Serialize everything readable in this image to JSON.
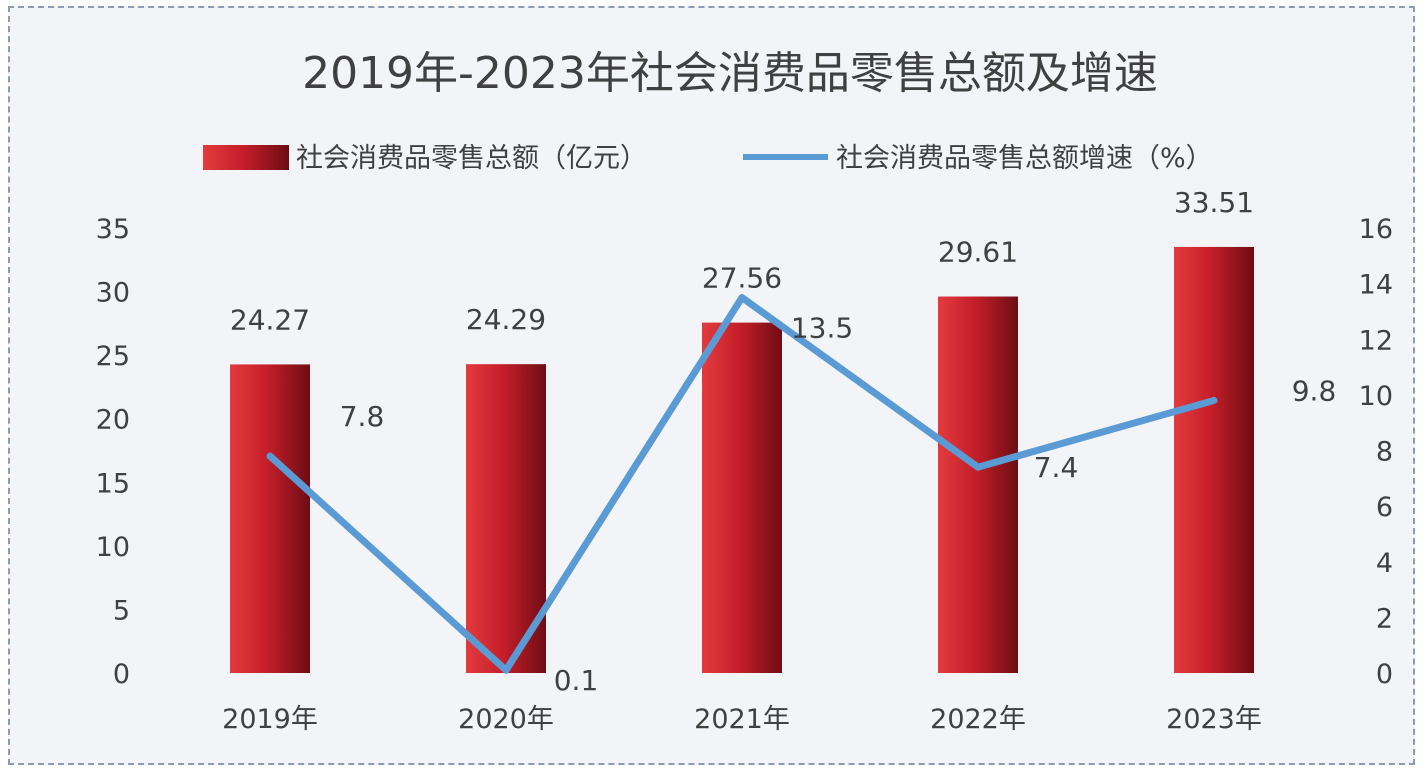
{
  "chart_data": {
    "type": "bar",
    "title": "2019年-2023年社会消费品零售总额及增速",
    "categories": [
      "2019年",
      "2020年",
      "2021年",
      "2022年",
      "2023年"
    ],
    "series": [
      {
        "name": "社会消费品零售总额（亿元）",
        "type": "bar",
        "axis": "left",
        "values": [
          24.27,
          24.29,
          27.56,
          29.61,
          33.51
        ],
        "value_labels": [
          "24.27",
          "24.29",
          "27.56",
          "29.61",
          "33.51"
        ],
        "color": "#c0202a"
      },
      {
        "name": "社会消费品零售总额增速（%）",
        "type": "line",
        "axis": "right",
        "values": [
          7.8,
          0.1,
          13.5,
          7.4,
          9.8
        ],
        "value_labels": [
          "7.8",
          "0.1",
          "13.5",
          "7.4",
          "9.8"
        ],
        "color": "#5b9bd5"
      }
    ],
    "y_left": {
      "min": 0,
      "max": 35,
      "ticks": [
        "0",
        "5",
        "10",
        "15",
        "20",
        "25",
        "30",
        "35"
      ]
    },
    "y_right": {
      "min": 0,
      "max": 16,
      "ticks": [
        "0",
        "2",
        "4",
        "6",
        "8",
        "10",
        "12",
        "14",
        "16"
      ]
    },
    "legend": "top",
    "grid": false
  }
}
